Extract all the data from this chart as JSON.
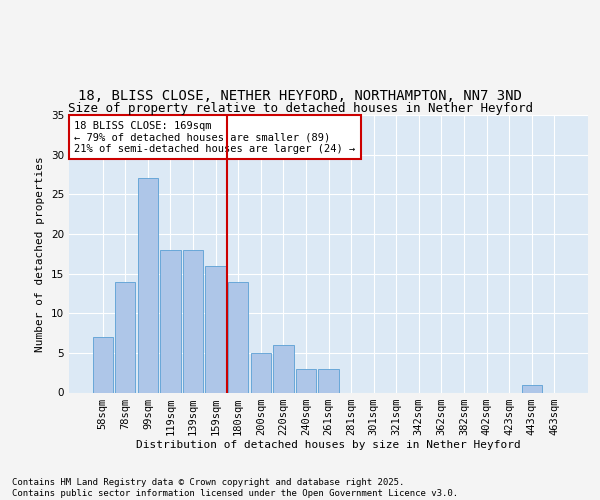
{
  "title_line1": "18, BLISS CLOSE, NETHER HEYFORD, NORTHAMPTON, NN7 3ND",
  "title_line2": "Size of property relative to detached houses in Nether Heyford",
  "xlabel": "Distribution of detached houses by size in Nether Heyford",
  "ylabel": "Number of detached properties",
  "bar_labels": [
    "58sqm",
    "78sqm",
    "99sqm",
    "119sqm",
    "139sqm",
    "159sqm",
    "180sqm",
    "200sqm",
    "220sqm",
    "240sqm",
    "261sqm",
    "281sqm",
    "301sqm",
    "321sqm",
    "342sqm",
    "362sqm",
    "382sqm",
    "402sqm",
    "423sqm",
    "443sqm",
    "463sqm"
  ],
  "bar_values": [
    7,
    14,
    27,
    18,
    18,
    16,
    14,
    5,
    6,
    3,
    3,
    0,
    0,
    0,
    0,
    0,
    0,
    0,
    0,
    1,
    0
  ],
  "bar_color": "#aec6e8",
  "bar_edge_color": "#5a9fd4",
  "background_color": "#dce9f5",
  "grid_color": "#ffffff",
  "annotation_text": "18 BLISS CLOSE: 169sqm\n← 79% of detached houses are smaller (89)\n21% of semi-detached houses are larger (24) →",
  "annotation_box_color": "#ffffff",
  "annotation_box_edge": "#cc0000",
  "vline_color": "#cc0000",
  "ylim": [
    0,
    35
  ],
  "yticks": [
    0,
    5,
    10,
    15,
    20,
    25,
    30,
    35
  ],
  "footer_text": "Contains HM Land Registry data © Crown copyright and database right 2025.\nContains public sector information licensed under the Open Government Licence v3.0.",
  "title_fontsize": 10,
  "subtitle_fontsize": 9,
  "axis_label_fontsize": 8,
  "tick_fontsize": 7.5,
  "annotation_fontsize": 7.5,
  "footer_fontsize": 6.5,
  "fig_bg": "#f4f4f4"
}
